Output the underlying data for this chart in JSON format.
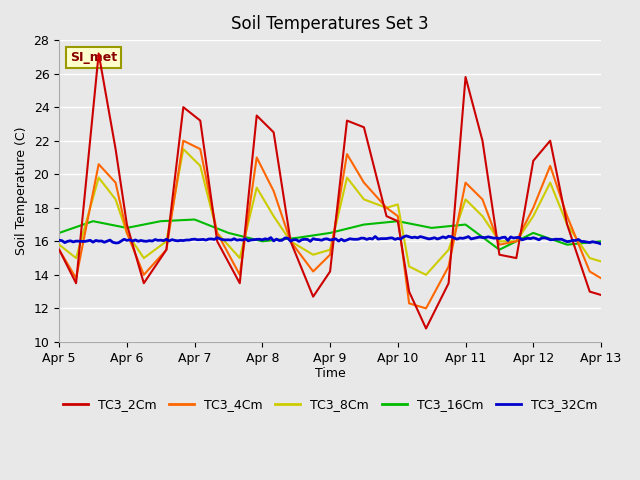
{
  "title": "Soil Temperatures Set 3",
  "xlabel": "Time",
  "ylabel": "Soil Temperature (C)",
  "ylim": [
    10,
    28
  ],
  "yticks": [
    10,
    12,
    14,
    16,
    18,
    20,
    22,
    24,
    26,
    28
  ],
  "bg_color": "#e8e8e8",
  "plot_bg": "#e8e8e8",
  "grid_color": "#ffffff",
  "annotation_text": "SI_met",
  "annotation_bg": "#ffffcc",
  "annotation_border": "#999900",
  "series": {
    "TC3_2Cm": {
      "color": "#cc0000",
      "lw": 1.5
    },
    "TC3_4Cm": {
      "color": "#ff6600",
      "lw": 1.5
    },
    "TC3_8Cm": {
      "color": "#cccc00",
      "lw": 1.5
    },
    "TC3_16Cm": {
      "color": "#00bb00",
      "lw": 1.5
    },
    "TC3_32Cm": {
      "color": "#0000cc",
      "lw": 2.0
    }
  },
  "x_start": 0,
  "x_end": 192,
  "hours_per_day": 24,
  "xtick_positions": [
    0,
    24,
    48,
    72,
    96,
    120,
    144,
    168,
    192
  ],
  "xtick_labels": [
    "Apr 5",
    "Apr 6",
    "Apr 7",
    "Apr 8",
    "Apr 9",
    "Apr 10",
    "Apr 11",
    "Apr 12",
    "Apr 13"
  ]
}
